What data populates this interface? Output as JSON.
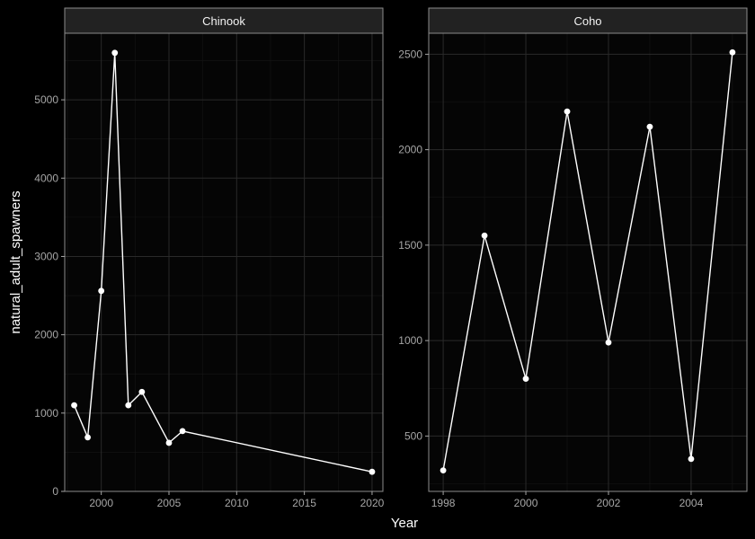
{
  "chart_data": {
    "type": "line",
    "theme": "dark, faceted, grid on, no legend",
    "xlabel": "Year",
    "ylabel": "natural_adult_spawners",
    "colors": {
      "background": "#000000",
      "panel": "#050505",
      "grid_major": "#2a2a2a",
      "grid_minor": "#161616",
      "strip": "#222222",
      "border": "#8c8c8c",
      "line": "#ffffff"
    },
    "panels": [
      {
        "title": "Chinook",
        "xlim": [
          1997.3,
          2020.8
        ],
        "ylim": [
          0,
          5850
        ],
        "xticks": [
          2000,
          2005,
          2010,
          2015,
          2020
        ],
        "yticks": [
          0,
          1000,
          2000,
          3000,
          4000,
          5000
        ],
        "x": [
          1998,
          1999,
          2000,
          2001,
          2002,
          2003,
          2005,
          2006,
          2020
        ],
        "y": [
          1100,
          690,
          2560,
          5600,
          1100,
          1270,
          620,
          770,
          250
        ]
      },
      {
        "title": "Coho",
        "xlim": [
          1997.65,
          2005.35
        ],
        "ylim": [
          210,
          2610
        ],
        "xticks": [
          1998,
          2000,
          2002,
          2004
        ],
        "yticks": [
          500,
          1000,
          1500,
          2000,
          2500
        ],
        "x": [
          1998,
          1999,
          2000,
          2001,
          2002,
          2003,
          2004,
          2005
        ],
        "y": [
          320,
          1550,
          800,
          2200,
          990,
          2120,
          380,
          2510
        ]
      }
    ]
  }
}
